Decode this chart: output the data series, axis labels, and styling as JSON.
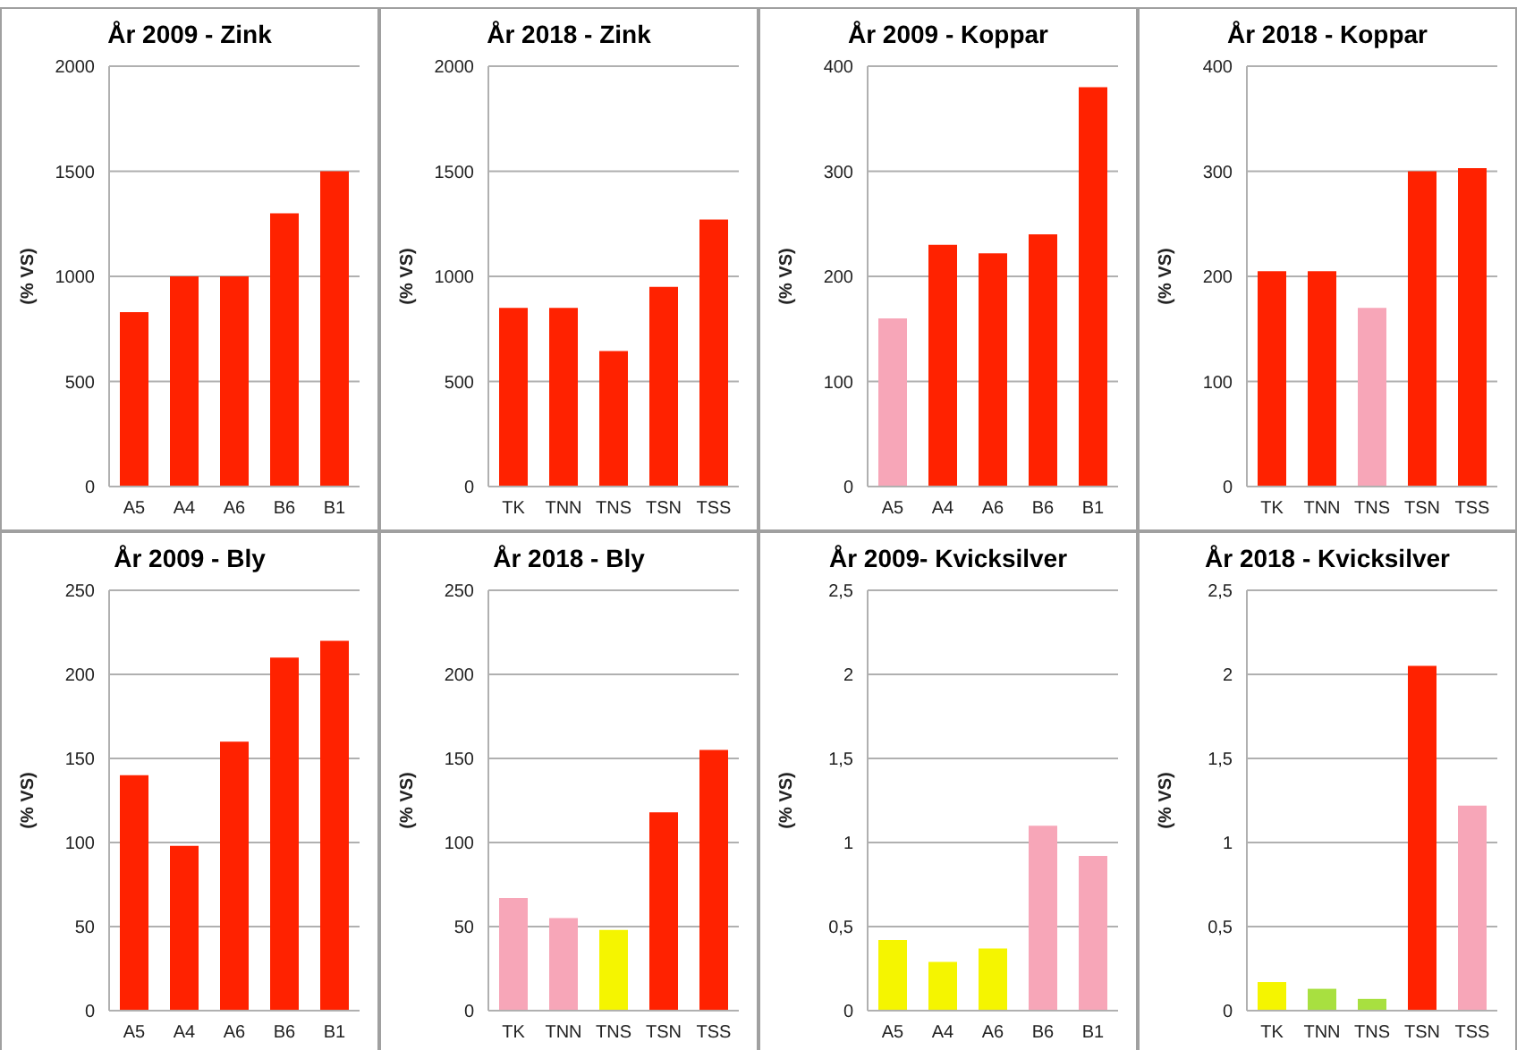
{
  "chart_data": [
    {
      "type": "bar",
      "title": "År 2009 - Zink",
      "ylabel": "(% VS)",
      "categories": [
        "A5",
        "A4",
        "A6",
        "B6",
        "B1"
      ],
      "values": [
        830,
        1000,
        1000,
        1300,
        1500
      ],
      "colors": [
        "#ff2200",
        "#ff2200",
        "#ff2200",
        "#ff2200",
        "#ff2200"
      ],
      "ylim": [
        0,
        2000
      ],
      "yticks": [
        0,
        500,
        1000,
        1500,
        2000
      ],
      "grid": "y"
    },
    {
      "type": "bar",
      "title": "År 2018 - Zink",
      "ylabel": "(% VS)",
      "categories": [
        "TK",
        "TNN",
        "TNS",
        "TSN",
        "TSS"
      ],
      "values": [
        850,
        850,
        645,
        950,
        1270
      ],
      "colors": [
        "#ff2200",
        "#ff2200",
        "#ff2200",
        "#ff2200",
        "#ff2200"
      ],
      "ylim": [
        0,
        2000
      ],
      "yticks": [
        0,
        500,
        1000,
        1500,
        2000
      ],
      "grid": "y"
    },
    {
      "type": "bar",
      "title": "År 2009 - Koppar",
      "ylabel": "(% VS)",
      "categories": [
        "A5",
        "A4",
        "A6",
        "B6",
        "B1"
      ],
      "values": [
        160,
        230,
        222,
        240,
        380
      ],
      "colors": [
        "#f7a6b8",
        "#ff2200",
        "#ff2200",
        "#ff2200",
        "#ff2200"
      ],
      "ylim": [
        0,
        400
      ],
      "yticks": [
        0,
        100,
        200,
        300,
        400
      ],
      "grid": "y"
    },
    {
      "type": "bar",
      "title": "År 2018 - Koppar",
      "ylabel": "(% VS)",
      "categories": [
        "TK",
        "TNN",
        "TNS",
        "TSN",
        "TSS"
      ],
      "values": [
        205,
        205,
        170,
        300,
        303
      ],
      "colors": [
        "#ff2200",
        "#ff2200",
        "#f7a6b8",
        "#ff2200",
        "#ff2200"
      ],
      "ylim": [
        0,
        400
      ],
      "yticks": [
        0,
        100,
        200,
        300,
        400
      ],
      "grid": "y"
    },
    {
      "type": "bar",
      "title": "År 2009 - Bly",
      "ylabel": "(% VS)",
      "categories": [
        "A5",
        "A4",
        "A6",
        "B6",
        "B1"
      ],
      "values": [
        140,
        98,
        160,
        210,
        220
      ],
      "colors": [
        "#ff2200",
        "#ff2200",
        "#ff2200",
        "#ff2200",
        "#ff2200"
      ],
      "ylim": [
        0,
        250
      ],
      "yticks": [
        0,
        50,
        100,
        150,
        200,
        250
      ],
      "grid": "y"
    },
    {
      "type": "bar",
      "title": "År 2018 - Bly",
      "ylabel": "(% VS)",
      "categories": [
        "TK",
        "TNN",
        "TNS",
        "TSN",
        "TSS"
      ],
      "values": [
        67,
        55,
        48,
        118,
        155
      ],
      "colors": [
        "#f7a6b8",
        "#f7a6b8",
        "#f5f500",
        "#ff2200",
        "#ff2200"
      ],
      "ylim": [
        0,
        250
      ],
      "yticks": [
        0,
        50,
        100,
        150,
        200,
        250
      ],
      "grid": "y"
    },
    {
      "type": "bar",
      "title": "År 2009- Kvicksilver",
      "ylabel": "(% VS)",
      "categories": [
        "A5",
        "A4",
        "A6",
        "B6",
        "B1"
      ],
      "values": [
        0.42,
        0.29,
        0.37,
        1.1,
        0.92
      ],
      "colors": [
        "#f5f500",
        "#f5f500",
        "#f5f500",
        "#f7a6b8",
        "#f7a6b8"
      ],
      "ylim": [
        0,
        2.5
      ],
      "yticks": [
        0,
        {
          "value": 0.5,
          "label": "0,5"
        },
        1,
        {
          "value": 1.5,
          "label": "1,5"
        },
        2,
        {
          "value": 2.5,
          "label": "2,5"
        }
      ],
      "grid": "y"
    },
    {
      "type": "bar",
      "title": "År 2018 - Kvicksilver",
      "ylabel": "(% VS)",
      "categories": [
        "TK",
        "TNN",
        "TNS",
        "TSN",
        "TSS"
      ],
      "values": [
        0.17,
        0.13,
        0.07,
        2.05,
        1.22
      ],
      "colors": [
        "#f5f500",
        "#a8e040",
        "#a8e040",
        "#ff2200",
        "#f7a6b8"
      ],
      "ylim": [
        0,
        2.5
      ],
      "yticks": [
        0,
        {
          "value": 0.5,
          "label": "0,5"
        },
        1,
        {
          "value": 1.5,
          "label": "1,5"
        },
        2,
        {
          "value": 2.5,
          "label": "2,5"
        }
      ],
      "grid": "y"
    }
  ]
}
